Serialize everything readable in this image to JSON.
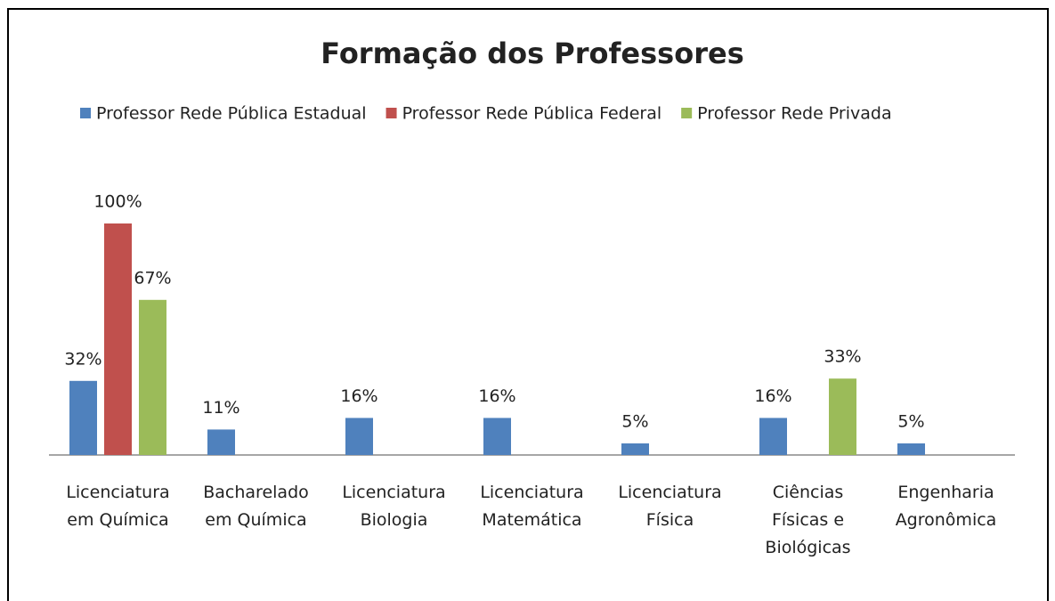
{
  "chart_data": {
    "type": "bar",
    "title": "Formação dos Professores",
    "categories": [
      "Licenciatura em Química",
      "Bacharelado em Química",
      "Licenciatura Biologia",
      "Licenciatura Matemática",
      "Licenciatura Física",
      "Ciências Físicas e Biológicas",
      "Engenharia Agronômica"
    ],
    "series": [
      {
        "name": "Professor Rede Pública Estadual",
        "color": "#4f81bd",
        "values": [
          32,
          11,
          16,
          16,
          5,
          16,
          5
        ],
        "value_labels": [
          "32%",
          "11%",
          "16%",
          "16%",
          "5%",
          "16%",
          "5%"
        ]
      },
      {
        "name": "Professor Rede Pública Federal",
        "color": "#c0504d",
        "values": [
          100,
          null,
          null,
          null,
          null,
          null,
          null
        ],
        "value_labels": [
          "100%",
          null,
          null,
          null,
          null,
          null,
          null
        ]
      },
      {
        "name": "Professor Rede Privada",
        "color": "#9bbb59",
        "values": [
          67,
          null,
          null,
          null,
          null,
          33,
          null
        ],
        "value_labels": [
          "67%",
          null,
          null,
          null,
          null,
          "33%",
          null
        ]
      }
    ],
    "ylim": [
      0,
      120
    ],
    "legend": "top"
  }
}
